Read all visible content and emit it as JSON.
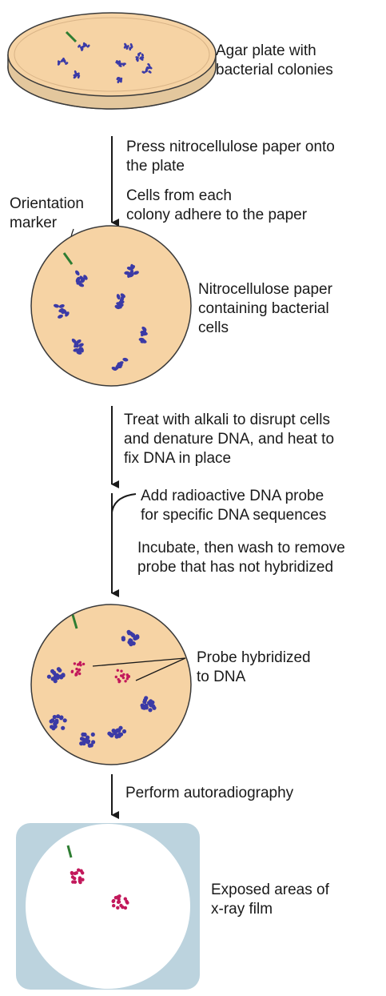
{
  "steps": {
    "agar_plate_label": [
      "Agar plate with",
      "bacterial colonies"
    ],
    "press_step": [
      "Press nitrocellulose paper onto",
      "the plate"
    ],
    "adhere_step": [
      "Cells from each",
      "colony adhere to the paper"
    ],
    "orientation_marker_label": [
      "Orientation",
      "marker"
    ],
    "paper_label": [
      "Nitrocellulose paper",
      "containing bacterial",
      "cells"
    ],
    "alkali_step": [
      "Treat with alkali to disrupt cells",
      "and denature DNA, and heat to",
      "fix DNA in place"
    ],
    "probe_step": [
      "Add radioactive DNA probe",
      "for specific DNA sequences"
    ],
    "incubate_step": [
      "Incubate, then wash to remove",
      "probe that has not hybridized"
    ],
    "hybridized_label": [
      "Probe hybridized",
      "to DNA"
    ],
    "autoradiography_step": [
      "Perform autoradiography"
    ],
    "film_label": [
      "Exposed areas of",
      "x-ray film"
    ]
  },
  "colors": {
    "agar": "#f6d3a4",
    "agar_edge": "#d9b487",
    "plate_rim": "#3a3a3a",
    "colony_blue": "#3b3aa6",
    "probe_pink": "#c2185b",
    "marker_green": "#2e7d32",
    "film_bg": "#bcd3de",
    "film_white": "#ffffff"
  }
}
